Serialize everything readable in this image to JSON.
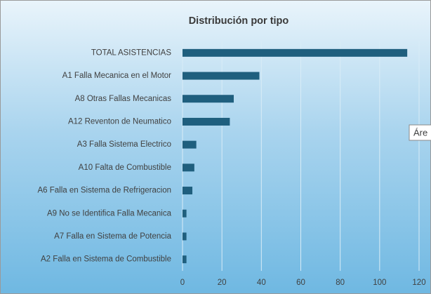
{
  "chart_data": {
    "type": "bar",
    "orientation": "horizontal",
    "title": "Distribución por tipo",
    "categories": [
      "TOTAL ASISTENCIAS",
      "A1  Falla Mecanica en el Motor",
      "A8  Otras Fallas Mecanicas",
      "A12  Reventon de Neumatico",
      "A3  Falla Sistema Electrico",
      "A10  Falta de Combustible",
      "A6  Falla en Sistema de Refrigeracion",
      "A9  No se Identifica Falla Mecanica",
      "A7  Falla en Sistema de Potencia",
      "A2  Falla en Sistema de Combustible"
    ],
    "values": [
      114,
      39,
      26,
      24,
      7,
      6,
      5,
      2,
      2,
      2
    ],
    "color": "#1f5f7e",
    "xlim": [
      0,
      120
    ],
    "xticks": [
      0,
      20,
      40,
      60,
      80,
      100,
      120
    ],
    "grid": true,
    "tooltip": "Áre"
  }
}
